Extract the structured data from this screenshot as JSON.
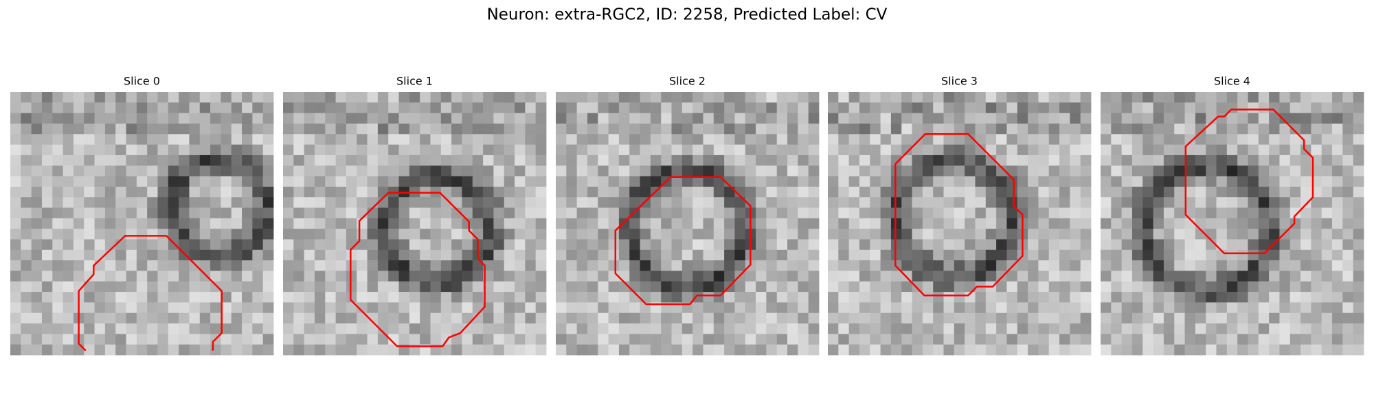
{
  "title": "Neuron: extra-RGC2, ID: 2258, Predicted Label: CV",
  "panels": [
    {
      "title": "Slice 0"
    },
    {
      "title": "Slice 1"
    },
    {
      "title": "Slice 2"
    },
    {
      "title": "Slice 3"
    },
    {
      "title": "Slice 4"
    }
  ]
}
